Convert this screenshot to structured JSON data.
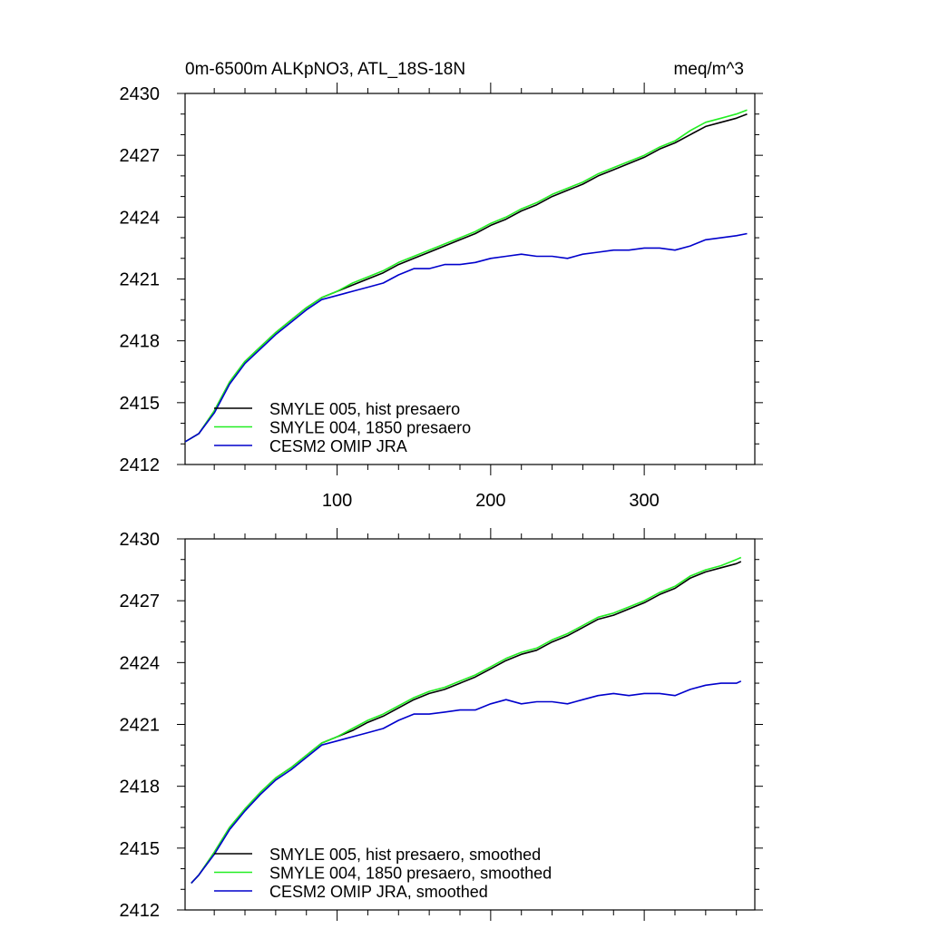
{
  "title_left": "0m-6500m ALKpNO3, ATL_18S-18N",
  "title_right": "meq/m^3",
  "colors": {
    "series_1": "#000000",
    "series_2": "#22ee22",
    "series_3": "#0000cc"
  },
  "chart_data": [
    {
      "type": "line",
      "title": "0m-6500m ALKpNO3, ATL_18S-18N",
      "units": "meq/m^3",
      "xlim": [
        1,
        372
      ],
      "ylim": [
        2412,
        2430
      ],
      "x_ticks": [
        100,
        200,
        300
      ],
      "y_ticks": [
        2412,
        2415,
        2418,
        2421,
        2424,
        2427,
        2430
      ],
      "x_tick_labels": [
        "100",
        "200",
        "300"
      ],
      "y_tick_labels": [
        "2412",
        "2415",
        "2418",
        "2421",
        "2424",
        "2427",
        "2430"
      ],
      "smoothed": false,
      "series": [
        {
          "name": "SMYLE 005, hist presaero",
          "color": "#000000",
          "x": [
            1,
            10,
            20,
            30,
            40,
            50,
            60,
            70,
            80,
            90,
            100,
            110,
            120,
            130,
            140,
            150,
            160,
            170,
            180,
            190,
            200,
            210,
            220,
            230,
            240,
            250,
            260,
            270,
            280,
            290,
            300,
            310,
            320,
            330,
            340,
            350,
            360,
            367
          ],
          "y": [
            2413.1,
            2413.5,
            2414.6,
            2416.0,
            2417.0,
            2417.7,
            2418.4,
            2419.0,
            2419.6,
            2420.1,
            2420.4,
            2420.7,
            2421.0,
            2421.3,
            2421.7,
            2422.0,
            2422.3,
            2422.6,
            2422.9,
            2423.2,
            2423.6,
            2423.9,
            2424.3,
            2424.6,
            2425.0,
            2425.3,
            2425.6,
            2426.0,
            2426.3,
            2426.6,
            2426.9,
            2427.3,
            2427.6,
            2428.0,
            2428.4,
            2428.6,
            2428.8,
            2429.0
          ]
        },
        {
          "name": "SMYLE 004, 1850 presaero",
          "color": "#22ee22",
          "x": [
            1,
            10,
            20,
            30,
            40,
            50,
            60,
            70,
            80,
            90,
            100,
            110,
            120,
            130,
            140,
            150,
            160,
            170,
            180,
            190,
            200,
            210,
            220,
            230,
            240,
            250,
            260,
            270,
            280,
            290,
            300,
            310,
            320,
            330,
            340,
            350,
            360,
            367
          ],
          "y": [
            2413.1,
            2413.5,
            2414.6,
            2416.0,
            2417.0,
            2417.7,
            2418.4,
            2419.0,
            2419.6,
            2420.1,
            2420.4,
            2420.8,
            2421.1,
            2421.4,
            2421.8,
            2422.1,
            2422.4,
            2422.7,
            2423.0,
            2423.3,
            2423.7,
            2424.0,
            2424.4,
            2424.7,
            2425.1,
            2425.4,
            2425.7,
            2426.1,
            2426.4,
            2426.7,
            2427.0,
            2427.4,
            2427.7,
            2428.2,
            2428.6,
            2428.8,
            2429.0,
            2429.2
          ]
        },
        {
          "name": "CESM2 OMIP JRA",
          "color": "#0000cc",
          "x": [
            1,
            10,
            20,
            30,
            40,
            50,
            60,
            70,
            80,
            90,
            100,
            110,
            120,
            130,
            140,
            150,
            160,
            170,
            180,
            190,
            200,
            210,
            220,
            230,
            240,
            250,
            260,
            270,
            280,
            290,
            300,
            310,
            320,
            330,
            340,
            350,
            360,
            367
          ],
          "y": [
            2413.1,
            2413.5,
            2414.5,
            2415.9,
            2416.9,
            2417.6,
            2418.3,
            2418.9,
            2419.5,
            2420.0,
            2420.2,
            2420.4,
            2420.6,
            2420.8,
            2421.2,
            2421.5,
            2421.5,
            2421.7,
            2421.7,
            2421.8,
            2422.0,
            2422.1,
            2422.2,
            2422.1,
            2422.1,
            2422.0,
            2422.2,
            2422.3,
            2422.4,
            2422.4,
            2422.5,
            2422.5,
            2422.4,
            2422.6,
            2422.9,
            2423.0,
            2423.1,
            2423.2
          ]
        }
      ]
    },
    {
      "type": "line",
      "xlim": [
        1,
        372
      ],
      "ylim": [
        2412,
        2430
      ],
      "x_ticks": [
        100,
        200,
        300
      ],
      "y_ticks": [
        2412,
        2415,
        2418,
        2421,
        2424,
        2427,
        2430
      ],
      "x_tick_labels": [],
      "y_tick_labels": [
        "2412",
        "2415",
        "2418",
        "2421",
        "2424",
        "2427",
        "2430"
      ],
      "smoothed": true,
      "series": [
        {
          "name": "SMYLE 005, hist presaero, smoothed",
          "color": "#000000",
          "x": [
            5,
            10,
            20,
            30,
            40,
            50,
            60,
            70,
            80,
            90,
            100,
            110,
            120,
            130,
            140,
            150,
            160,
            170,
            180,
            190,
            200,
            210,
            220,
            230,
            240,
            250,
            260,
            270,
            280,
            290,
            300,
            310,
            320,
            330,
            340,
            350,
            360,
            363
          ],
          "y": [
            2413.3,
            2413.7,
            2414.8,
            2416.0,
            2416.9,
            2417.7,
            2418.4,
            2418.9,
            2419.5,
            2420.1,
            2420.4,
            2420.7,
            2421.1,
            2421.4,
            2421.8,
            2422.2,
            2422.5,
            2422.7,
            2423.0,
            2423.3,
            2423.7,
            2424.1,
            2424.4,
            2424.6,
            2425.0,
            2425.3,
            2425.7,
            2426.1,
            2426.3,
            2426.6,
            2426.9,
            2427.3,
            2427.6,
            2428.1,
            2428.4,
            2428.6,
            2428.8,
            2428.9
          ]
        },
        {
          "name": "SMYLE 004, 1850 presaero, smoothed",
          "color": "#22ee22",
          "x": [
            5,
            10,
            20,
            30,
            40,
            50,
            60,
            70,
            80,
            90,
            100,
            110,
            120,
            130,
            140,
            150,
            160,
            170,
            180,
            190,
            200,
            210,
            220,
            230,
            240,
            250,
            260,
            270,
            280,
            290,
            300,
            310,
            320,
            330,
            340,
            350,
            360,
            363
          ],
          "y": [
            2413.3,
            2413.7,
            2414.8,
            2416.0,
            2416.9,
            2417.7,
            2418.4,
            2418.9,
            2419.5,
            2420.1,
            2420.4,
            2420.8,
            2421.2,
            2421.5,
            2421.9,
            2422.3,
            2422.6,
            2422.8,
            2423.1,
            2423.4,
            2423.8,
            2424.2,
            2424.5,
            2424.7,
            2425.1,
            2425.4,
            2425.8,
            2426.2,
            2426.4,
            2426.7,
            2427.0,
            2427.4,
            2427.7,
            2428.2,
            2428.5,
            2428.7,
            2429.0,
            2429.1
          ]
        },
        {
          "name": "CESM2 OMIP JRA, smoothed",
          "color": "#0000cc",
          "x": [
            5,
            10,
            20,
            30,
            40,
            50,
            60,
            70,
            80,
            90,
            100,
            110,
            120,
            130,
            140,
            150,
            160,
            170,
            180,
            190,
            200,
            210,
            220,
            230,
            240,
            250,
            260,
            270,
            280,
            290,
            300,
            310,
            320,
            330,
            340,
            350,
            360,
            363
          ],
          "y": [
            2413.3,
            2413.7,
            2414.7,
            2415.9,
            2416.8,
            2417.6,
            2418.3,
            2418.8,
            2419.4,
            2420.0,
            2420.2,
            2420.4,
            2420.6,
            2420.8,
            2421.2,
            2421.5,
            2421.5,
            2421.6,
            2421.7,
            2421.7,
            2422.0,
            2422.2,
            2422.0,
            2422.1,
            2422.1,
            2422.0,
            2422.2,
            2422.4,
            2422.5,
            2422.4,
            2422.5,
            2422.5,
            2422.4,
            2422.7,
            2422.9,
            2423.0,
            2423.0,
            2423.1
          ]
        }
      ]
    }
  ]
}
